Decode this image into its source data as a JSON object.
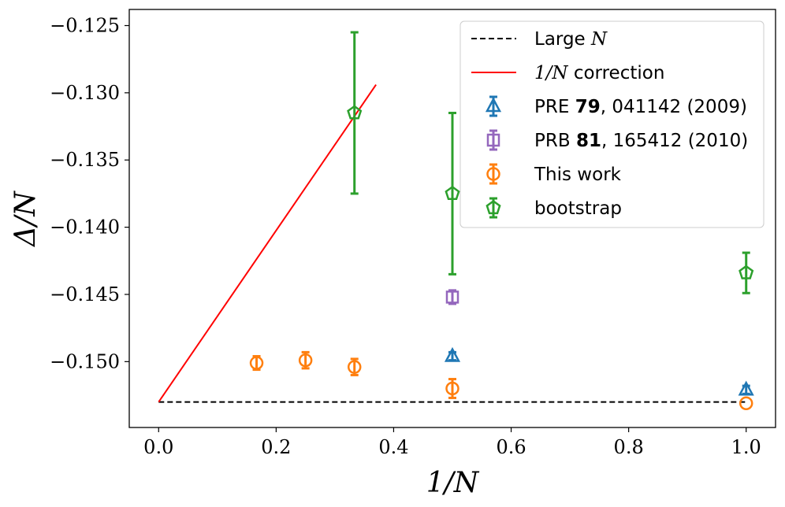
{
  "chart_data": {
    "type": "scatter",
    "title": "",
    "xlabel": "1/N",
    "ylabel": "Δ/N",
    "xlim": [
      -0.05,
      1.05
    ],
    "ylim": [
      -0.1549,
      -0.1238
    ],
    "xticks": [
      0.0,
      0.2,
      0.4,
      0.6,
      0.8,
      1.0
    ],
    "xtick_labels": [
      "0.0",
      "0.2",
      "0.4",
      "0.6",
      "0.8",
      "1.0"
    ],
    "yticks": [
      -0.125,
      -0.13,
      -0.135,
      -0.14,
      -0.145,
      -0.15
    ],
    "ytick_labels": [
      "−0.125",
      "−0.130",
      "−0.135",
      "−0.140",
      "−0.145",
      "−0.150"
    ],
    "grid": false,
    "legend_position": "top-right",
    "series": [
      {
        "name": "Large N",
        "kind": "line",
        "style": "dashed",
        "color": "#000000",
        "x": [
          0.0,
          1.0
        ],
        "y": [
          -0.153,
          -0.153
        ],
        "legend_parts": [
          "Large ",
          "N"
        ]
      },
      {
        "name": "1/N correction",
        "kind": "line",
        "style": "solid",
        "color": "#ff0000",
        "x": [
          0.0,
          0.37
        ],
        "y": [
          -0.153,
          -0.1294
        ],
        "legend_parts": [
          "1/N",
          " correction"
        ]
      },
      {
        "name": "PRE 79, 041142 (2009)",
        "kind": "errorbar",
        "marker": "triangle",
        "color": "#1f77b4",
        "x": [
          0.5,
          1.0
        ],
        "y": [
          -0.1496,
          -0.1521
        ],
        "yerr": [
          0.0003,
          0.0003
        ],
        "legend_parts": [
          "PRE ",
          "79",
          ", 041142 (2009)"
        ]
      },
      {
        "name": "PRB 81, 165412 (2010)",
        "kind": "errorbar",
        "marker": "square",
        "color": "#9467bd",
        "x": [
          0.5
        ],
        "y": [
          -0.1452
        ],
        "yerr": [
          0.0005
        ],
        "legend_parts": [
          "PRB ",
          "81",
          ", 165412 (2010)"
        ]
      },
      {
        "name": "This work",
        "kind": "errorbar",
        "marker": "circle",
        "color": "#ff7f0e",
        "x": [
          0.1667,
          0.25,
          0.3333,
          0.5,
          1.0
        ],
        "y": [
          -0.1501,
          -0.1499,
          -0.1504,
          -0.152,
          -0.1531
        ],
        "yerr": [
          0.0005,
          0.0006,
          0.0006,
          0.0007,
          0.0
        ],
        "legend_parts": [
          "This work"
        ]
      },
      {
        "name": "bootstrap",
        "kind": "errorbar",
        "marker": "pentagon",
        "color": "#2ca02c",
        "x": [
          0.3333,
          0.5,
          1.0
        ],
        "y": [
          -0.1315,
          -0.1375,
          -0.1434
        ],
        "yerr": [
          0.006,
          0.006,
          0.0015
        ],
        "legend_parts": [
          "bootstrap"
        ]
      }
    ]
  }
}
